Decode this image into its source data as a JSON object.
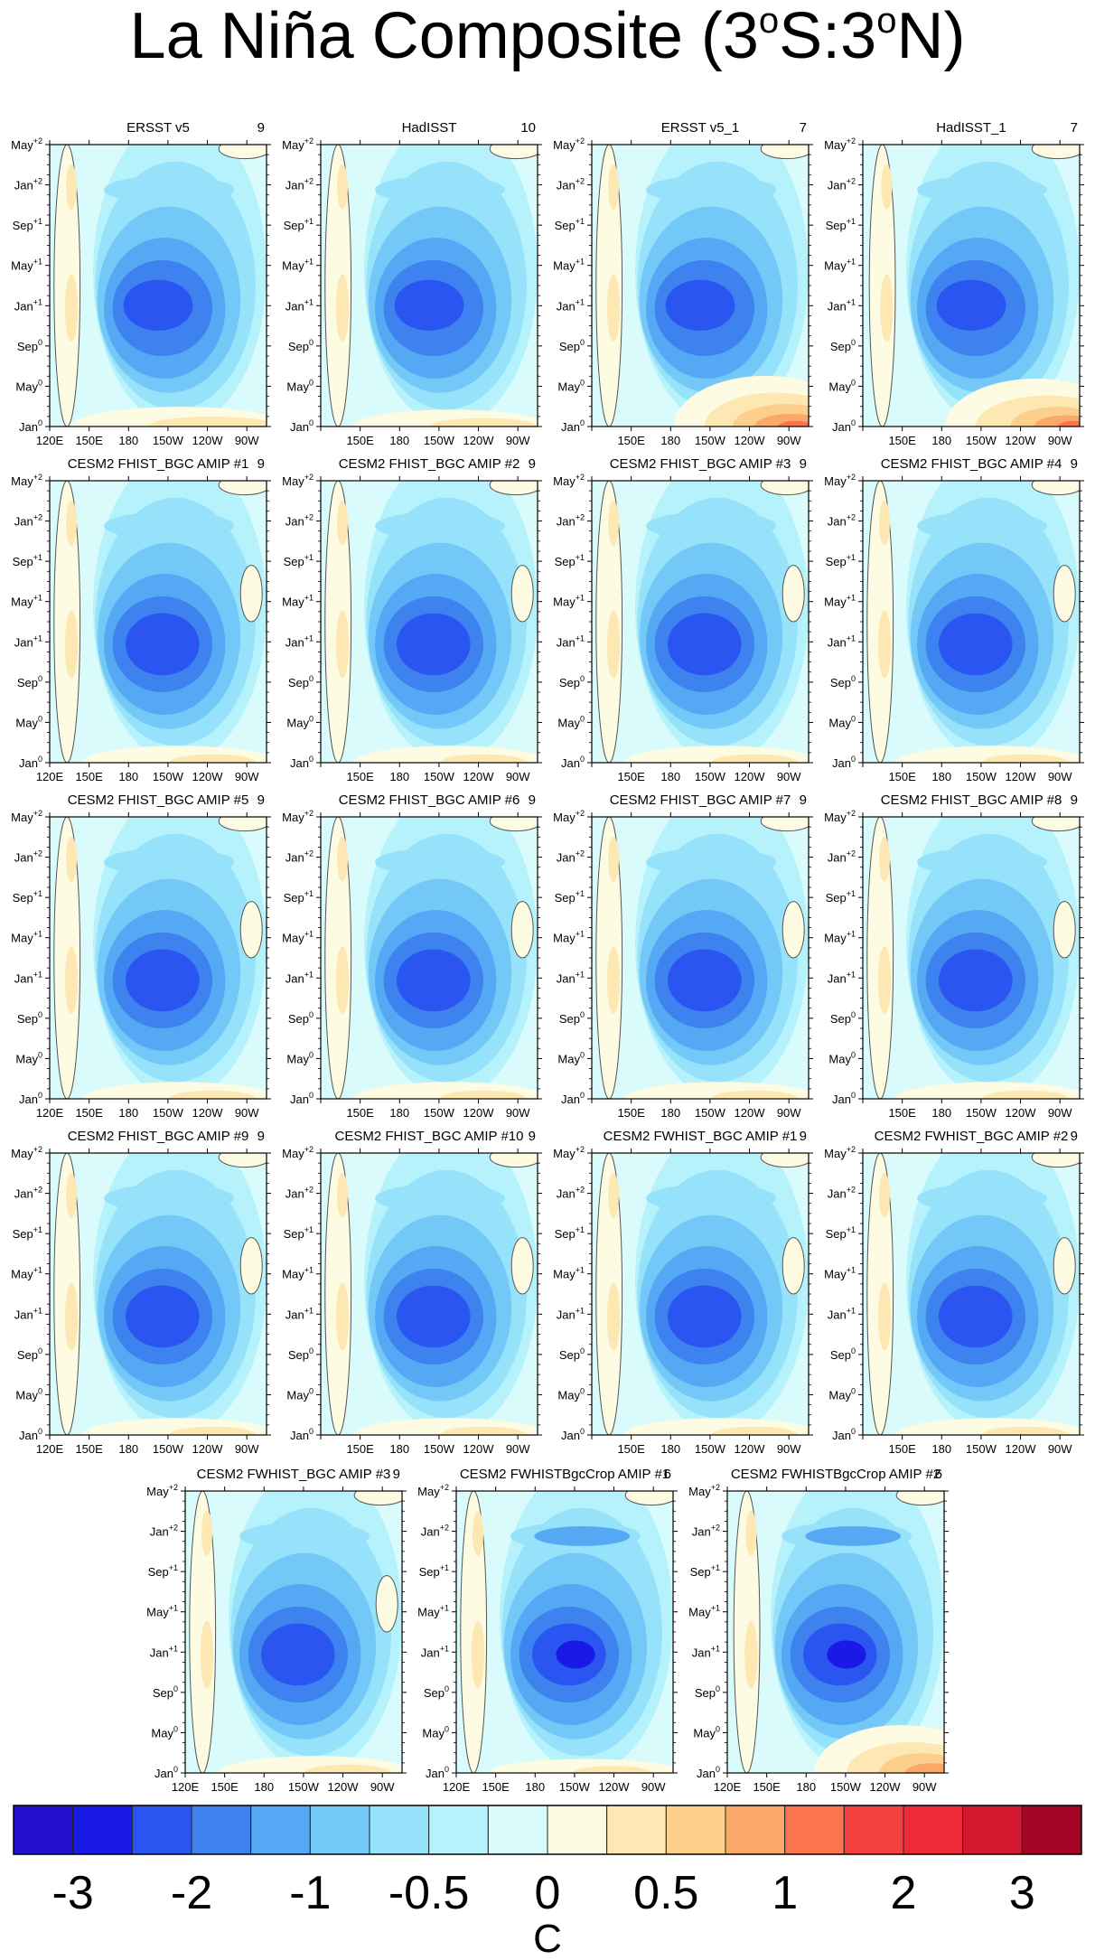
{
  "title": {
    "prefix": "La Niña Composite (3",
    "sup1": "o",
    "middle": "S:3",
    "sup2": "o",
    "suffix": "N)"
  },
  "chart_data": {
    "type": "heatmap",
    "title": "La Niña Composite (3oS:3oN)",
    "x_tick_labels": [
      "120E",
      "150E",
      "180",
      "150W",
      "120W",
      "90W"
    ],
    "y_tick_labels": [
      {
        "base": "Jan",
        "sup": "0"
      },
      {
        "base": "May",
        "sup": "0"
      },
      {
        "base": "Sep",
        "sup": "0"
      },
      {
        "base": "Jan",
        "sup": "+1"
      },
      {
        "base": "May",
        "sup": "+1"
      },
      {
        "base": "Sep",
        "sup": "+1"
      },
      {
        "base": "Jan",
        "sup": "+2"
      },
      {
        "base": "May",
        "sup": "+2"
      }
    ],
    "panels": [
      {
        "name": "ERSST v5",
        "count": "9",
        "variant": "obs1"
      },
      {
        "name": "HadISST",
        "count": "10",
        "variant": "obs2"
      },
      {
        "name": "ERSST v5_1",
        "count": "7",
        "variant": "obs3"
      },
      {
        "name": "HadISST_1",
        "count": "7",
        "variant": "obs4"
      },
      {
        "name": "CESM2 FHIST_BGC AMIP #1",
        "count": "9",
        "variant": "model"
      },
      {
        "name": "CESM2 FHIST_BGC AMIP #2",
        "count": "9",
        "variant": "model"
      },
      {
        "name": "CESM2 FHIST_BGC AMIP #3",
        "count": "9",
        "variant": "model"
      },
      {
        "name": "CESM2 FHIST_BGC AMIP #4",
        "count": "9",
        "variant": "model"
      },
      {
        "name": "CESM2 FHIST_BGC AMIP #5",
        "count": "9",
        "variant": "model"
      },
      {
        "name": "CESM2 FHIST_BGC AMIP #6",
        "count": "9",
        "variant": "model"
      },
      {
        "name": "CESM2 FHIST_BGC AMIP #7",
        "count": "9",
        "variant": "model"
      },
      {
        "name": "CESM2 FHIST_BGC AMIP #8",
        "count": "9",
        "variant": "model"
      },
      {
        "name": "CESM2 FHIST_BGC AMIP #9",
        "count": "9",
        "variant": "model"
      },
      {
        "name": "CESM2 FHIST_BGC AMIP #10",
        "count": "9",
        "variant": "model"
      },
      {
        "name": "CESM2 FWHIST_BGC AMIP #1",
        "count": "9",
        "variant": "model"
      },
      {
        "name": "CESM2 FWHIST_BGC AMIP #2",
        "count": "9",
        "variant": "model"
      },
      {
        "name": "CESM2 FWHIST_BGC AMIP #3",
        "count": "9",
        "variant": "model"
      },
      {
        "name": "CESM2 FWHISTBgcCrop AMIP #1",
        "count": "6",
        "variant": "crop1"
      },
      {
        "name": "CESM2 FWHISTBgcCrop AMIP #2",
        "count": "6",
        "variant": "crop2"
      }
    ],
    "colorbar": {
      "colors": [
        "#2410d0",
        "#1a1ae6",
        "#2a55f0",
        "#3d82ee",
        "#55a8f3",
        "#74c8f7",
        "#96e2fa",
        "#b6f2fb",
        "#dafbfc",
        "#fdfbe1",
        "#fde8b4",
        "#fcd08c",
        "#fba96a",
        "#f9744f",
        "#f4403f",
        "#f02a37",
        "#d41830",
        "#a40525"
      ],
      "tick_labels": [
        "-3",
        "-2",
        "-1",
        "-0.5",
        "0",
        "0.5",
        "1",
        "2",
        "3"
      ],
      "unit": "C"
    }
  }
}
